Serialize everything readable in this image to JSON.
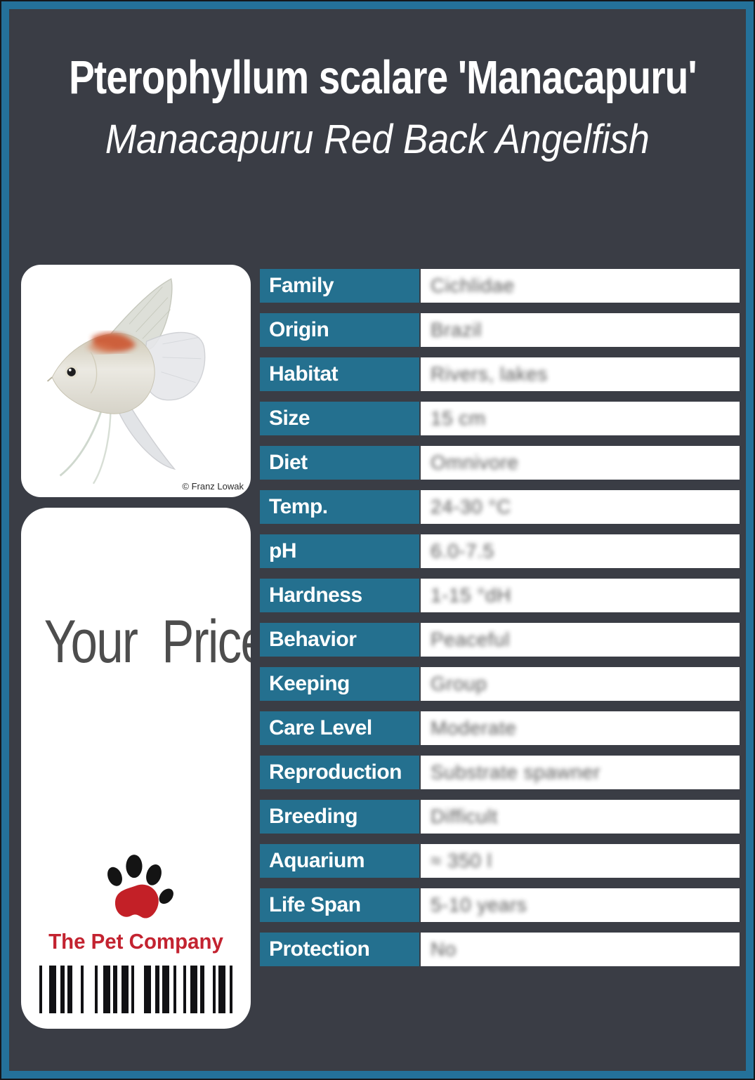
{
  "header": {
    "title": "Pterophyllum scalare 'Manacapuru'",
    "subtitle": "Manacapuru Red Back Angelfish"
  },
  "photo": {
    "subject": "angelfish-photo",
    "credit": "© Franz Lowak"
  },
  "price": {
    "label": "Your Price"
  },
  "brand": {
    "name": "The Pet Company",
    "logo": "paw-print-icon"
  },
  "colors": {
    "accent_teal": "#24708f",
    "frame_teal": "#24719a",
    "background_dark": "#3a3d45",
    "panel_white": "#ffffff",
    "brand_red": "#c32330",
    "value_text": "#3e3e3e"
  },
  "table": {
    "rows": [
      {
        "label": "Family",
        "value": "Cichlidae"
      },
      {
        "label": "Origin",
        "value": "Brazil"
      },
      {
        "label": "Habitat",
        "value": "Rivers, lakes"
      },
      {
        "label": "Size",
        "value": "15 cm"
      },
      {
        "label": "Diet",
        "value": "Omnivore"
      },
      {
        "label": "Temp.",
        "value": "24-30 °C"
      },
      {
        "label": "pH",
        "value": "6.0-7.5"
      },
      {
        "label": "Hardness",
        "value": "1-15 °dH"
      },
      {
        "label": "Behavior",
        "value": "Peaceful"
      },
      {
        "label": "Keeping",
        "value": "Group"
      },
      {
        "label": "Care Level",
        "value": "Moderate"
      },
      {
        "label": "Reproduction",
        "value": "Substrate spawner"
      },
      {
        "label": "Breeding",
        "value": "Difficult"
      },
      {
        "label": "Aquarium",
        "value": "≈ 350 l"
      },
      {
        "label": "Life Span",
        "value": "5-10 years"
      },
      {
        "label": "Protection",
        "value": "No"
      }
    ]
  },
  "barcode": {
    "pattern": [
      5,
      5,
      4,
      10,
      10,
      6,
      6,
      4,
      7,
      12,
      4,
      16,
      4,
      8,
      10,
      4,
      6,
      6,
      10,
      4,
      4,
      14,
      10,
      6,
      6,
      4,
      10,
      6,
      4,
      10,
      4,
      6,
      10,
      4,
      6,
      12,
      4,
      4,
      10,
      6,
      4,
      4,
      7
    ]
  }
}
